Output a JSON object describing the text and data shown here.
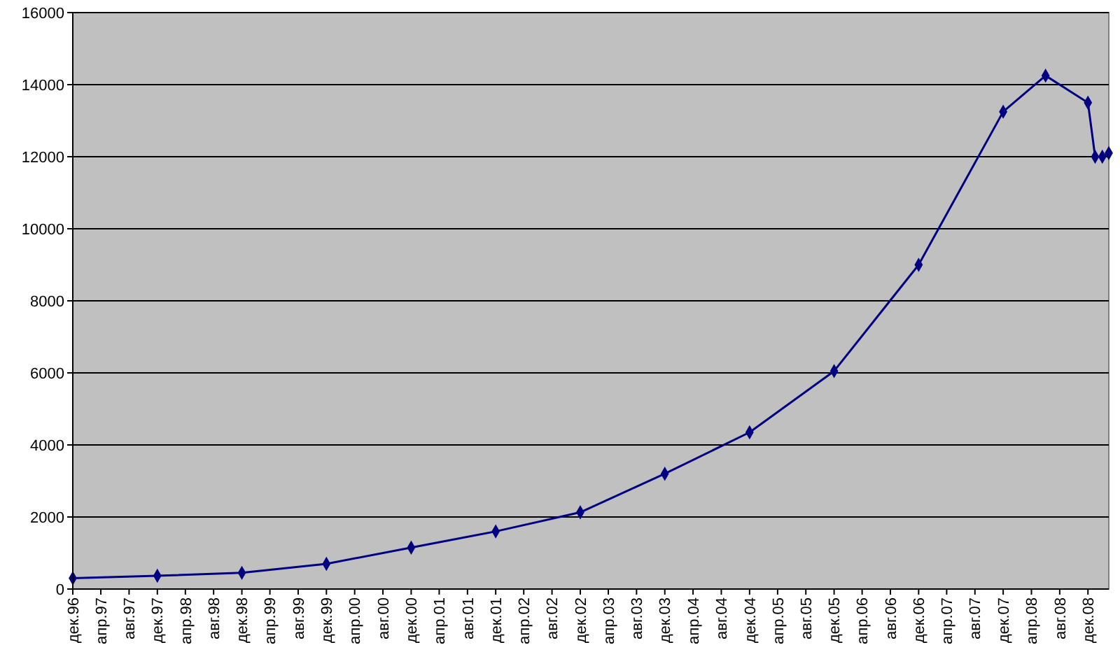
{
  "chart_data": {
    "type": "line",
    "x": [
      "1996-12",
      "1997-12",
      "1998-12",
      "1999-12",
      "2000-12",
      "2001-12",
      "2002-12",
      "2003-12",
      "2004-12",
      "2005-12",
      "2006-12",
      "2007-12",
      "2008-06",
      "2008-12",
      "2009-01",
      "2009-02",
      "2009-03"
    ],
    "series": [
      {
        "color": "#000080",
        "values": [
          300,
          370,
          450,
          700,
          1150,
          1600,
          2130,
          3200,
          4350,
          6050,
          9000,
          13250,
          14250,
          13500,
          12000,
          12000,
          12100
        ]
      }
    ],
    "xlim": [
      "1996-12",
      "2009-03"
    ],
    "xticks": [
      {
        "value": "1996-12",
        "label": "дек.96"
      },
      {
        "value": "1997-04",
        "label": "апр.97"
      },
      {
        "value": "1997-08",
        "label": "авг.97"
      },
      {
        "value": "1997-12",
        "label": "дек.97"
      },
      {
        "value": "1998-04",
        "label": "апр.98"
      },
      {
        "value": "1998-08",
        "label": "авг.98"
      },
      {
        "value": "1998-12",
        "label": "дек.98"
      },
      {
        "value": "1999-04",
        "label": "апр.99"
      },
      {
        "value": "1999-08",
        "label": "авг.99"
      },
      {
        "value": "1999-12",
        "label": "дек.99"
      },
      {
        "value": "2000-04",
        "label": "апр.00"
      },
      {
        "value": "2000-08",
        "label": "авг.00"
      },
      {
        "value": "2000-12",
        "label": "дек.00"
      },
      {
        "value": "2001-04",
        "label": "апр.01"
      },
      {
        "value": "2001-08",
        "label": "авг.01"
      },
      {
        "value": "2001-12",
        "label": "дек.01"
      },
      {
        "value": "2002-04",
        "label": "апр.02"
      },
      {
        "value": "2002-08",
        "label": "авг.02"
      },
      {
        "value": "2002-12",
        "label": "дек.02"
      },
      {
        "value": "2003-04",
        "label": "апр.03"
      },
      {
        "value": "2003-08",
        "label": "авг.03"
      },
      {
        "value": "2003-12",
        "label": "дек.03"
      },
      {
        "value": "2004-04",
        "label": "апр.04"
      },
      {
        "value": "2004-08",
        "label": "авг.04"
      },
      {
        "value": "2004-12",
        "label": "дек.04"
      },
      {
        "value": "2005-04",
        "label": "апр.05"
      },
      {
        "value": "2005-08",
        "label": "авг.05"
      },
      {
        "value": "2005-12",
        "label": "дек.05"
      },
      {
        "value": "2006-04",
        "label": "апр.06"
      },
      {
        "value": "2006-08",
        "label": "авг.06"
      },
      {
        "value": "2006-12",
        "label": "дек.06"
      },
      {
        "value": "2007-04",
        "label": "апр.07"
      },
      {
        "value": "2007-08",
        "label": "авг.07"
      },
      {
        "value": "2007-12",
        "label": "дек.07"
      },
      {
        "value": "2008-04",
        "label": "апр.08"
      },
      {
        "value": "2008-08",
        "label": "авг.08"
      },
      {
        "value": "2008-12",
        "label": "дек.08"
      }
    ],
    "ylim": [
      0,
      16000
    ],
    "yticks": [
      0,
      2000,
      4000,
      6000,
      8000,
      10000,
      12000,
      14000,
      16000
    ],
    "grid": "y",
    "marker": "diamond",
    "line_style": "solid"
  }
}
